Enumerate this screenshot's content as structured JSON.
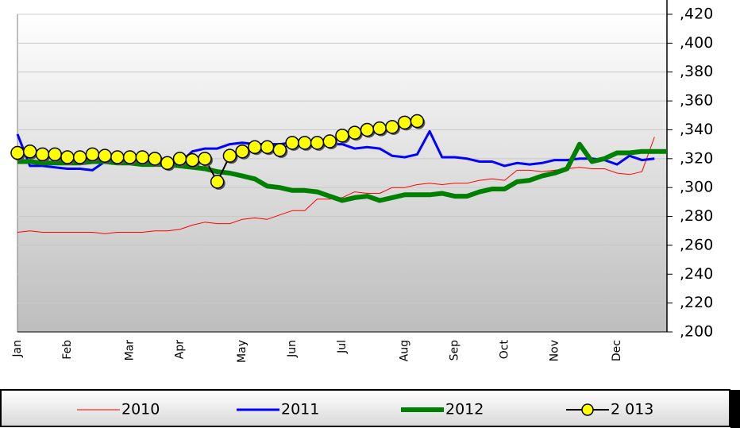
{
  "chart_data": {
    "type": "line",
    "categories": [
      "Jan",
      null,
      null,
      null,
      "Feb",
      null,
      null,
      null,
      null,
      "Mar",
      null,
      null,
      null,
      "Apr",
      null,
      null,
      null,
      null,
      "May",
      null,
      null,
      null,
      "Jun",
      null,
      null,
      null,
      "Jul",
      null,
      null,
      null,
      null,
      "Aug",
      null,
      null,
      null,
      "Sep",
      null,
      null,
      null,
      "Oct",
      null,
      null,
      null,
      "Nov",
      null,
      null,
      null,
      null,
      "Dec",
      null,
      null,
      null,
      null
    ],
    "series": [
      {
        "name": "2010",
        "color": "#ff0000",
        "values": [
          0.269,
          0.27,
          0.269,
          0.269,
          0.269,
          0.269,
          0.269,
          0.268,
          0.269,
          0.269,
          0.269,
          0.27,
          0.27,
          0.271,
          0.274,
          0.276,
          0.275,
          0.275,
          0.278,
          0.279,
          0.278,
          0.281,
          0.284,
          0.284,
          0.292,
          0.292,
          0.293,
          0.297,
          0.296,
          0.296,
          0.3,
          0.3,
          0.302,
          0.303,
          0.302,
          0.303,
          0.303,
          0.305,
          0.306,
          0.305,
          0.312,
          0.312,
          0.311,
          0.312,
          0.313,
          0.314,
          0.313,
          0.313,
          0.31,
          0.309,
          0.311,
          0.335,
          null
        ]
      },
      {
        "name": "2011",
        "color": "#0000ff",
        "values": [
          0.337,
          0.315,
          0.315,
          0.314,
          0.313,
          0.313,
          0.312,
          0.318,
          0.32,
          0.319,
          0.319,
          0.318,
          0.318,
          0.317,
          0.325,
          0.327,
          0.327,
          0.33,
          0.331,
          0.33,
          0.33,
          0.33,
          0.331,
          0.33,
          0.332,
          0.33,
          0.33,
          0.327,
          0.328,
          0.327,
          0.322,
          0.321,
          0.323,
          0.339,
          0.321,
          0.321,
          0.32,
          0.318,
          0.318,
          0.315,
          0.317,
          0.316,
          0.317,
          0.319,
          0.319,
          0.32,
          0.32,
          0.319,
          0.316,
          0.322,
          0.319,
          0.32,
          null
        ]
      },
      {
        "name": "2012",
        "color": "#008000",
        "values": [
          0.318,
          0.318,
          0.317,
          0.317,
          0.317,
          0.317,
          0.318,
          0.318,
          0.317,
          0.317,
          0.316,
          0.316,
          0.316,
          0.315,
          0.314,
          0.313,
          0.311,
          0.31,
          0.308,
          0.306,
          0.301,
          0.3,
          0.298,
          0.298,
          0.297,
          0.294,
          0.291,
          0.293,
          0.294,
          0.291,
          0.293,
          0.295,
          0.295,
          0.295,
          0.296,
          0.294,
          0.294,
          0.297,
          0.299,
          0.299,
          0.304,
          0.305,
          0.308,
          0.31,
          0.313,
          0.33,
          0.318,
          0.32,
          0.324,
          0.324,
          0.325,
          0.325,
          0.325
        ]
      },
      {
        "name": "2 013",
        "color": "#ffff00",
        "values": [
          0.324,
          0.325,
          0.323,
          0.323,
          0.321,
          0.321,
          0.323,
          0.322,
          0.321,
          0.321,
          0.321,
          0.32,
          0.317,
          0.32,
          0.319,
          0.32,
          0.304,
          0.322,
          0.325,
          0.328,
          0.328,
          0.326,
          0.331,
          0.331,
          0.331,
          0.332,
          0.336,
          0.338,
          0.34,
          0.341,
          0.342,
          0.345,
          0.346,
          null,
          null,
          null,
          null,
          null,
          null,
          null,
          null,
          null,
          null,
          null,
          null,
          null,
          null,
          null,
          null,
          null,
          null,
          null,
          null
        ]
      }
    ],
    "ylim": [
      0.2,
      0.42
    ],
    "yticks": [
      {
        "value": 0.2,
        "label": ",200"
      },
      {
        "value": 0.22,
        "label": ",220"
      },
      {
        "value": 0.24,
        "label": ",240"
      },
      {
        "value": 0.26,
        "label": ",260"
      },
      {
        "value": 0.28,
        "label": ",280"
      },
      {
        "value": 0.3,
        "label": ",300"
      },
      {
        "value": 0.32,
        "label": ",320"
      },
      {
        "value": 0.34,
        "label": ",340"
      },
      {
        "value": 0.36,
        "label": ",360"
      },
      {
        "value": 0.38,
        "label": ",380"
      },
      {
        "value": 0.4,
        "label": ",400"
      },
      {
        "value": 0.42,
        "label": ",420"
      }
    ],
    "grid": true,
    "legend": "bottom"
  }
}
